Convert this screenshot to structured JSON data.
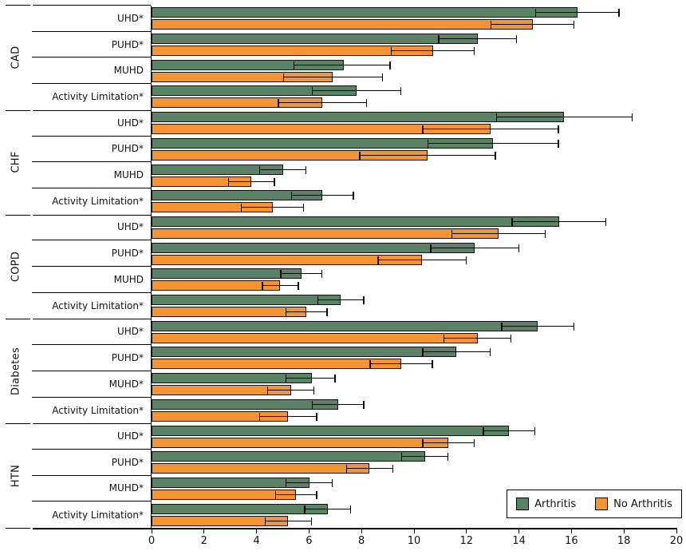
{
  "chart_data": {
    "type": "bar",
    "orientation": "horizontal",
    "title": "",
    "xlabel": "",
    "ylabel": "",
    "xlim": [
      0,
      20
    ],
    "xticks": [
      0,
      2,
      4,
      6,
      8,
      10,
      12,
      14,
      16,
      18,
      20
    ],
    "grid": false,
    "error_bars": true,
    "legend_position": "bottom-right",
    "legend": [
      {
        "name": "Arthritis",
        "color": "#5a8264"
      },
      {
        "name": "No Arthritis",
        "color": "#f79432"
      }
    ],
    "groups": [
      {
        "condition": "CAD",
        "rows": [
          {
            "label": "UHD*",
            "arthritis": {
              "value": 16.2,
              "ci": [
                14.6,
                17.8
              ]
            },
            "no_arthritis": {
              "value": 14.5,
              "ci": [
                12.9,
                16.1
              ]
            }
          },
          {
            "label": "PUHD*",
            "arthritis": {
              "value": 12.4,
              "ci": [
                10.9,
                13.9
              ]
            },
            "no_arthritis": {
              "value": 10.7,
              "ci": [
                9.1,
                12.3
              ]
            }
          },
          {
            "label": "MUHD",
            "arthritis": {
              "value": 7.3,
              "ci": [
                5.4,
                9.1
              ]
            },
            "no_arthritis": {
              "value": 6.9,
              "ci": [
                5.0,
                8.8
              ]
            }
          },
          {
            "label": "Activity Limitation*",
            "arthritis": {
              "value": 7.8,
              "ci": [
                6.1,
                9.5
              ]
            },
            "no_arthritis": {
              "value": 6.5,
              "ci": [
                4.8,
                8.2
              ]
            }
          }
        ]
      },
      {
        "condition": "CHF",
        "rows": [
          {
            "label": "UHD*",
            "arthritis": {
              "value": 15.7,
              "ci": [
                13.1,
                18.3
              ]
            },
            "no_arthritis": {
              "value": 12.9,
              "ci": [
                10.3,
                15.5
              ]
            }
          },
          {
            "label": "PUHD*",
            "arthritis": {
              "value": 13.0,
              "ci": [
                10.5,
                15.5
              ]
            },
            "no_arthritis": {
              "value": 10.5,
              "ci": [
                7.9,
                13.1
              ]
            }
          },
          {
            "label": "MUHD",
            "arthritis": {
              "value": 5.0,
              "ci": [
                4.1,
                5.9
              ]
            },
            "no_arthritis": {
              "value": 3.8,
              "ci": [
                2.9,
                4.7
              ]
            }
          },
          {
            "label": "Activity Limitation*",
            "arthritis": {
              "value": 6.5,
              "ci": [
                5.3,
                7.7
              ]
            },
            "no_arthritis": {
              "value": 4.6,
              "ci": [
                3.4,
                5.8
              ]
            }
          }
        ]
      },
      {
        "condition": "COPD",
        "rows": [
          {
            "label": "UHD*",
            "arthritis": {
              "value": 15.5,
              "ci": [
                13.7,
                17.3
              ]
            },
            "no_arthritis": {
              "value": 13.2,
              "ci": [
                11.4,
                15.0
              ]
            }
          },
          {
            "label": "PUHD*",
            "arthritis": {
              "value": 12.3,
              "ci": [
                10.6,
                14.0
              ]
            },
            "no_arthritis": {
              "value": 10.3,
              "ci": [
                8.6,
                12.0
              ]
            }
          },
          {
            "label": "MUHD",
            "arthritis": {
              "value": 5.7,
              "ci": [
                4.9,
                6.5
              ]
            },
            "no_arthritis": {
              "value": 4.9,
              "ci": [
                4.2,
                5.6
              ]
            }
          },
          {
            "label": "Activity Limitation*",
            "arthritis": {
              "value": 7.2,
              "ci": [
                6.3,
                8.1
              ]
            },
            "no_arthritis": {
              "value": 5.9,
              "ci": [
                5.1,
                6.7
              ]
            }
          }
        ]
      },
      {
        "condition": "Diabetes",
        "rows": [
          {
            "label": "UHD*",
            "arthritis": {
              "value": 14.7,
              "ci": [
                13.3,
                16.1
              ]
            },
            "no_arthritis": {
              "value": 12.4,
              "ci": [
                11.1,
                13.7
              ]
            }
          },
          {
            "label": "PUHD*",
            "arthritis": {
              "value": 11.6,
              "ci": [
                10.3,
                12.9
              ]
            },
            "no_arthritis": {
              "value": 9.5,
              "ci": [
                8.3,
                10.7
              ]
            }
          },
          {
            "label": "MUHD*",
            "arthritis": {
              "value": 6.1,
              "ci": [
                5.1,
                7.0
              ]
            },
            "no_arthritis": {
              "value": 5.3,
              "ci": [
                4.4,
                6.2
              ]
            }
          },
          {
            "label": "Activity Limitation*",
            "arthritis": {
              "value": 7.1,
              "ci": [
                6.1,
                8.1
              ]
            },
            "no_arthritis": {
              "value": 5.2,
              "ci": [
                4.1,
                6.3
              ]
            }
          }
        ]
      },
      {
        "condition": "HTN",
        "rows": [
          {
            "label": "UHD*",
            "arthritis": {
              "value": 13.6,
              "ci": [
                12.6,
                14.6
              ]
            },
            "no_arthritis": {
              "value": 11.3,
              "ci": [
                10.3,
                12.3
              ]
            }
          },
          {
            "label": "PUHD*",
            "arthritis": {
              "value": 10.4,
              "ci": [
                9.5,
                11.3
              ]
            },
            "no_arthritis": {
              "value": 8.3,
              "ci": [
                7.4,
                9.2
              ]
            }
          },
          {
            "label": "MUHD*",
            "arthritis": {
              "value": 6.0,
              "ci": [
                5.1,
                6.9
              ]
            },
            "no_arthritis": {
              "value": 5.5,
              "ci": [
                4.7,
                6.3
              ]
            }
          },
          {
            "label": "Activity Limitation*",
            "arthritis": {
              "value": 6.7,
              "ci": [
                5.8,
                7.6
              ]
            },
            "no_arthritis": {
              "value": 5.2,
              "ci": [
                4.3,
                6.1
              ]
            }
          }
        ]
      }
    ]
  }
}
